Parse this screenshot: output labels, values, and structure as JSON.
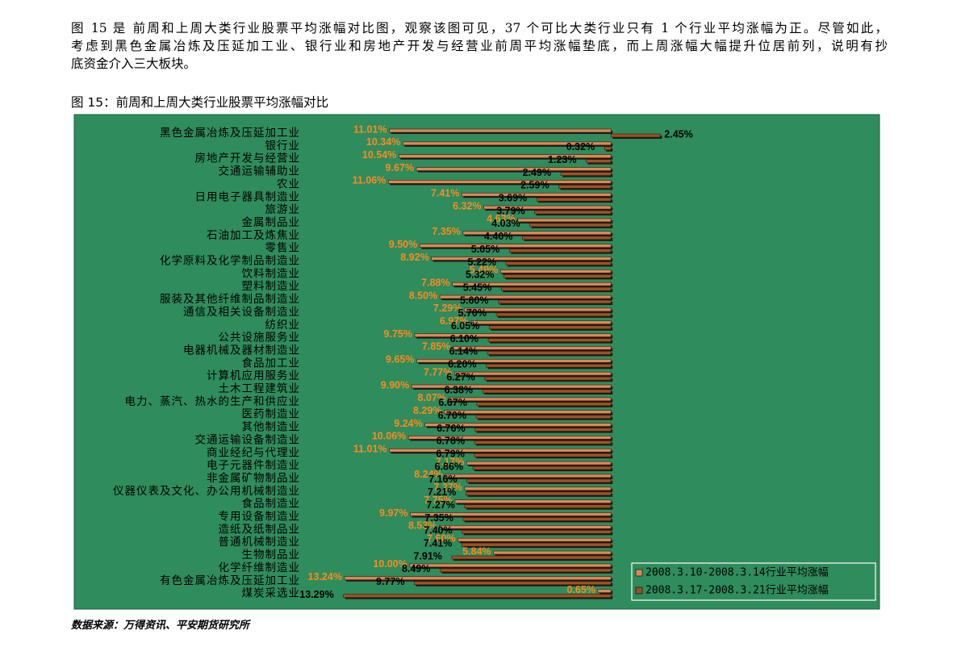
{
  "paragraph": [
    "图 15 是 前周和上周大类行业股票平均涨幅对比图，观察该图可见，37 个可比大类行业只有 1 个行业平均涨幅为正。尽管如此，",
    "考虑到黑色金属冶炼及压延加工业、银行业和房地产开发与经营业前周平均涨幅垫底，而上周涨幅大幅提升位居前列，说明有抄",
    "底资金介入三大板块。"
  ],
  "figure_title": "图 15：前周和上周大类行业股票平均涨幅对比",
  "source": "数据来源：万得资讯、平安期货研究所",
  "chart_data": {
    "type": "bar",
    "orientation": "horizontal",
    "categories": [
      "黑色金属冶炼及压延加工业",
      "银行业",
      "房地产开发与经营业",
      "交通运输辅助业",
      "农业",
      "日用电子器具制造业",
      "旅游业",
      "金属制品业",
      "石油加工及炼焦业",
      "零售业",
      "化学原料及化学制品制造业",
      "饮料制造业",
      "塑料制造业",
      "服装及其他纤维制品制造业",
      "通信及相关设备制造业",
      "纺织业",
      "公共设施服务业",
      "电器机械及器材制造业",
      "食品加工业",
      "计算机应用服务业",
      "土木工程建筑业",
      "电力、蒸汽、热水的生产和供应业",
      "医药制造业",
      "其他制造业",
      "交通运输设备制造业",
      "商业经纪与代理业",
      "电子元器件制造业",
      "非金属矿物制品业",
      "仪器仪表及文化、办公用机械制造业",
      "食品制造业",
      "专用设备制造业",
      "造纸及纸制品业",
      "普通机械制造业",
      "生物制品业",
      "化学纤维制造业",
      "有色金属冶炼及压延加工业",
      "煤炭采选业"
    ],
    "series": [
      {
        "name": "2008.3.10-2008.3.14行业平均涨幅",
        "color": "#d9895a",
        "label_color": "#ff8a1e",
        "values": [
          -11.01,
          -10.34,
          -10.54,
          -9.67,
          -11.06,
          -7.41,
          -6.32,
          -4.63,
          -7.35,
          -9.5,
          -8.92,
          -5.49,
          -7.88,
          -8.5,
          -7.29,
          -6.97,
          -9.75,
          -7.85,
          -9.65,
          -7.77,
          -9.9,
          -8.07,
          -8.29,
          -9.24,
          -10.06,
          -11.01,
          -7.17,
          -8.24,
          -7.27,
          -7.75,
          -9.97,
          -8.53,
          -7.6,
          -5.84,
          -10.0,
          -13.24,
          -0.65
        ],
        "value_labels": [
          "11.01%",
          "10.34%",
          "10.54%",
          "9.67%",
          "11.06%",
          "7.41%",
          "6.32%",
          "4.63%",
          "7.35%",
          "9.50%",
          "8.92%",
          "5.49%",
          "7.88%",
          "8.50%",
          "7.29%",
          "6.97%",
          "9.75%",
          "7.85%",
          "9.65%",
          "7.77%",
          "9.90%",
          "8.07%",
          "8.29%",
          "9.24%",
          "10.06%",
          "11.01%",
          "7.17%",
          "8.24%",
          "7.27%",
          "7.75%",
          "9.97%",
          "8.53%",
          "7.60%",
          "5.84%",
          "10.00%",
          "13.24%",
          "0.65%"
        ]
      },
      {
        "name": "2008.3.17-2008.3.21行业平均涨幅",
        "color": "#9a5228",
        "label_color": "#000000",
        "values": [
          2.45,
          -0.32,
          -1.23,
          -2.49,
          -2.59,
          -3.69,
          -3.79,
          -4.03,
          -4.4,
          -5.05,
          -5.22,
          -5.32,
          -5.45,
          -5.6,
          -5.7,
          -6.05,
          -6.1,
          -6.14,
          -6.2,
          -6.27,
          -6.38,
          -6.67,
          -6.7,
          -6.76,
          -6.78,
          -6.79,
          -6.86,
          -7.16,
          -7.21,
          -7.27,
          -7.35,
          -7.4,
          -7.41,
          -7.91,
          -8.49,
          -9.77,
          -13.29
        ],
        "value_labels": [
          "2.45%",
          "0.32%",
          "1.23%",
          "2.49%",
          "2.59%",
          "3.69%",
          "3.79%",
          "4.03%",
          "4.40%",
          "5.05%",
          "5.22%",
          "5.32%",
          "5.45%",
          "5.60%",
          "5.70%",
          "6.05%",
          "6.10%",
          "6.14%",
          "6.20%",
          "6.27%",
          "6.38%",
          "6.67%",
          "6.70%",
          "6.76%",
          "6.78%",
          "6.79%",
          "6.86%",
          "7.16%",
          "7.21%",
          "7.27%",
          "7.35%",
          "7.40%",
          "7.41%",
          "7.91%",
          "8.49%",
          "9.77%",
          "13.29%"
        ]
      }
    ],
    "xlim": [
      -14,
      3
    ],
    "background": "#2f8c5c",
    "legend": "bottom-right"
  }
}
